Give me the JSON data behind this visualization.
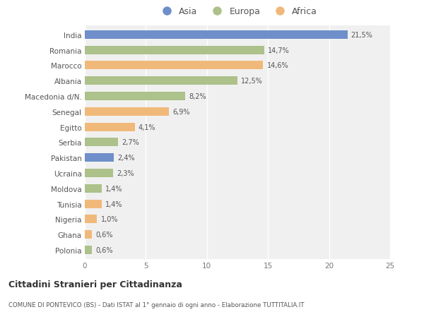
{
  "countries": [
    "India",
    "Romania",
    "Marocco",
    "Albania",
    "Macedonia d/N.",
    "Senegal",
    "Egitto",
    "Serbia",
    "Pakistan",
    "Ucraina",
    "Moldova",
    "Tunisia",
    "Nigeria",
    "Ghana",
    "Polonia"
  ],
  "values": [
    21.5,
    14.7,
    14.6,
    12.5,
    8.2,
    6.9,
    4.1,
    2.7,
    2.4,
    2.3,
    1.4,
    1.4,
    1.0,
    0.6,
    0.6
  ],
  "labels": [
    "21,5%",
    "14,7%",
    "14,6%",
    "12,5%",
    "8,2%",
    "6,9%",
    "4,1%",
    "2,7%",
    "2,4%",
    "2,3%",
    "1,4%",
    "1,4%",
    "1,0%",
    "0,6%",
    "0,6%"
  ],
  "colors": [
    "#6e8fc9",
    "#adc18a",
    "#f0b97a",
    "#adc18a",
    "#adc18a",
    "#f0b97a",
    "#f0b97a",
    "#adc18a",
    "#6e8fc9",
    "#adc18a",
    "#adc18a",
    "#f0b97a",
    "#f0b97a",
    "#f0b97a",
    "#adc18a"
  ],
  "legend_labels": [
    "Asia",
    "Europa",
    "Africa"
  ],
  "legend_colors": [
    "#6e8fc9",
    "#adc18a",
    "#f0b97a"
  ],
  "title": "Cittadini Stranieri per Cittadinanza",
  "subtitle": "COMUNE DI PONTEVICO (BS) - Dati ISTAT al 1° gennaio di ogni anno - Elaborazione TUTTITALIA.IT",
  "xlim": [
    0,
    25
  ],
  "xticks": [
    0,
    5,
    10,
    15,
    20,
    25
  ],
  "background_color": "#ffffff",
  "plot_bg_color": "#f0f0f0"
}
